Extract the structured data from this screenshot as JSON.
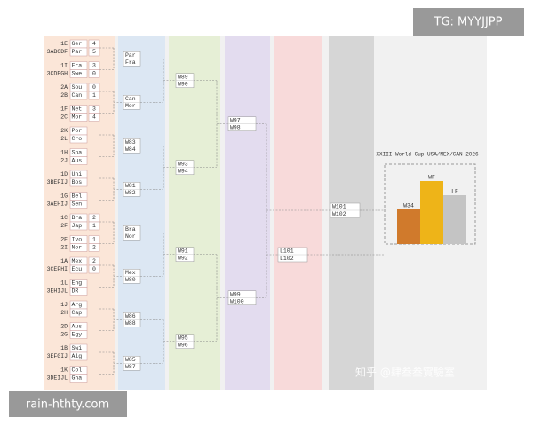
{
  "round_of_32": [
    {
      "teams": [
        {
          "seed": "1E",
          "name": "Ger",
          "score": 4
        },
        {
          "seed": "3ABCDF",
          "name": "Par",
          "score": 5
        }
      ]
    },
    {
      "teams": [
        {
          "seed": "1I",
          "name": "Fra",
          "score": 3
        },
        {
          "seed": "3CDFGH",
          "name": "Swe",
          "score": 0
        }
      ]
    },
    {
      "teams": [
        {
          "seed": "2A",
          "name": "Sou",
          "score": 0
        },
        {
          "seed": "2B",
          "name": "Can",
          "score": 1
        }
      ]
    },
    {
      "teams": [
        {
          "seed": "1F",
          "name": "Net",
          "score": 3
        },
        {
          "seed": "2C",
          "name": "Mor",
          "score": 4
        }
      ]
    },
    {
      "teams": [
        {
          "seed": "2K",
          "name": "Por"
        },
        {
          "seed": "2L",
          "name": "Cro"
        }
      ]
    },
    {
      "teams": [
        {
          "seed": "1H",
          "name": "Spa"
        },
        {
          "seed": "2J",
          "name": "Aus"
        }
      ]
    },
    {
      "teams": [
        {
          "seed": "1D",
          "name": "Uni"
        },
        {
          "seed": "3BEFIJ",
          "name": "Bos"
        }
      ]
    },
    {
      "teams": [
        {
          "seed": "1G",
          "name": "Bel"
        },
        {
          "seed": "3AEHIJ",
          "name": "Sen"
        }
      ]
    },
    {
      "teams": [
        {
          "seed": "1C",
          "name": "Bra",
          "score": 2
        },
        {
          "seed": "2F",
          "name": "Jap",
          "score": 1
        }
      ]
    },
    {
      "teams": [
        {
          "seed": "2E",
          "name": "Ivo",
          "score": 1
        },
        {
          "seed": "2I",
          "name": "Nor",
          "score": 2
        }
      ]
    },
    {
      "teams": [
        {
          "seed": "1A",
          "name": "Mex",
          "score": 2
        },
        {
          "seed": "3CEFHI",
          "name": "Ecu",
          "score": 0
        }
      ]
    },
    {
      "teams": [
        {
          "seed": "1L",
          "name": "Eng"
        },
        {
          "seed": "3EHIJL",
          "name": "DR"
        }
      ]
    },
    {
      "teams": [
        {
          "seed": "1J",
          "name": "Arg"
        },
        {
          "seed": "2H",
          "name": "Cap"
        }
      ]
    },
    {
      "teams": [
        {
          "seed": "2D",
          "name": "Aus"
        },
        {
          "seed": "2G",
          "name": "Egy"
        }
      ]
    },
    {
      "teams": [
        {
          "seed": "1B",
          "name": "Swi"
        },
        {
          "seed": "3EFGIJ",
          "name": "Alg"
        }
      ]
    },
    {
      "teams": [
        {
          "seed": "1K",
          "name": "Col"
        },
        {
          "seed": "3DEIJL",
          "name": "Gha"
        }
      ]
    }
  ],
  "round_of_16": [
    [
      "Par",
      "Fra"
    ],
    [
      "Can",
      "Mor"
    ],
    [
      "W83",
      "W84"
    ],
    [
      "W81",
      "W82"
    ],
    [
      "Bra",
      "Nor"
    ],
    [
      "Mex",
      "W80"
    ],
    [
      "W86",
      "W88"
    ],
    [
      "W85",
      "W87"
    ]
  ],
  "quarterfinals": [
    [
      "W89",
      "W90"
    ],
    [
      "W93",
      "W94"
    ],
    [
      "W91",
      "W92"
    ],
    [
      "W95",
      "W96"
    ]
  ],
  "semifinals": [
    [
      "W97",
      "W98"
    ],
    [
      "W99",
      "W100"
    ]
  ],
  "final": [
    "W101",
    "W102"
  ],
  "third_place": [
    "L101",
    "L102"
  ],
  "podium": {
    "title": "XXIII World Cup USA/MEX/CAN 2026",
    "third": "W34",
    "winner": "WF",
    "runner_up": "LF"
  },
  "watermarks": {
    "top_right": "TG: MYYJJPP",
    "bottom_left": "rain-hthty.com",
    "source": "知乎 @肆叁叁實驗室"
  }
}
